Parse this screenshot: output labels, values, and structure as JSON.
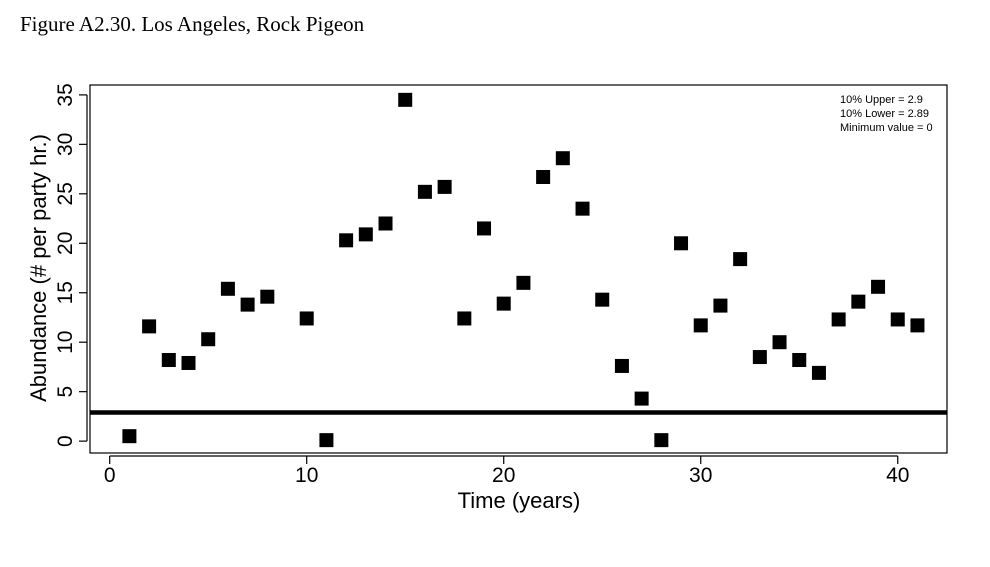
{
  "figure_title": "Figure A2.30. Los Angeles, Rock Pigeon",
  "colors": {
    "marker": "#000000",
    "line": "#000000",
    "background": "#ffffff"
  },
  "chart_data": {
    "type": "scatter",
    "title": "",
    "xlabel": "Time (years)",
    "ylabel": "Abundance (# per party hr.)",
    "xlim": [
      -1,
      42.5
    ],
    "ylim": [
      -1.2,
      36
    ],
    "xticks": [
      0,
      10,
      20,
      30,
      40
    ],
    "yticks": [
      0,
      5,
      10,
      15,
      20,
      25,
      30,
      35
    ],
    "grid": false,
    "legend_position": "top-right",
    "annotations": [
      "10% Upper =  2.9",
      "10% Lower =  2.89",
      "Minimum value =  0"
    ],
    "hline": {
      "y": 2.9
    },
    "series": [
      {
        "marker": "square",
        "x": [
          1,
          2,
          3,
          4,
          5,
          6,
          7,
          8,
          10,
          11,
          12,
          13,
          14,
          15,
          16,
          17,
          18,
          19,
          20,
          21,
          22,
          23,
          24,
          25,
          26,
          27,
          28,
          29,
          30,
          31,
          32,
          33,
          34,
          35,
          36,
          37,
          38,
          39,
          40,
          41
        ],
        "y": [
          0.5,
          11.6,
          8.2,
          7.9,
          10.3,
          15.4,
          13.8,
          14.6,
          12.4,
          0.1,
          20.3,
          20.9,
          22.0,
          34.5,
          25.2,
          25.7,
          12.4,
          21.5,
          13.9,
          16.0,
          26.7,
          28.6,
          23.5,
          14.3,
          7.6,
          4.3,
          0.1,
          20.0,
          11.7,
          13.7,
          18.4,
          8.5,
          10.0,
          8.2,
          6.9,
          12.3,
          14.1,
          15.6,
          12.3,
          11.7
        ]
      }
    ]
  }
}
